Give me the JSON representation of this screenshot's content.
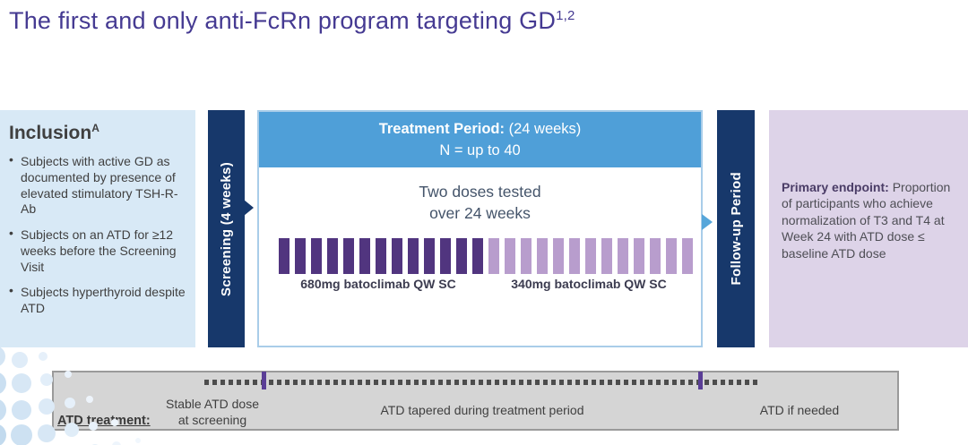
{
  "title": {
    "text": "The first and only anti-FcRn program targeting GD",
    "superscript": "1,2"
  },
  "inclusion": {
    "heading": "Inclusion",
    "heading_superscript": "A",
    "bullets": [
      "Subjects with active GD as documented by presence of elevated stimulatory TSH-R-Ab",
      "Subjects on an ATD for ≥12 weeks before the Screening Visit",
      "Subjects hyperthyroid despite ATD"
    ]
  },
  "screening_bar": {
    "label": "Screening (4 weeks)"
  },
  "treatment": {
    "header_title": "Treatment Period:",
    "header_weeks": "(24 weeks)",
    "header_n": "N = up to 40",
    "subtitle_line1": "Two doses tested",
    "subtitle_line2": "over 24 weeks",
    "dose1_label": "680mg batoclimab QW SC",
    "dose2_label": "340mg batoclimab QW SC",
    "dose1_bar_count": 13,
    "dose2_bar_count": 13
  },
  "followup_bar": {
    "label": "Follow-up Period"
  },
  "primary_endpoint": {
    "heading": "Primary endpoint:",
    "body": "Proportion of participants who achieve normalization of T3 and T4 at Week 24 with ATD dose ≤ baseline ATD dose"
  },
  "atd_timeline": {
    "label": "ATD treatment:",
    "phase1_line1": "Stable ATD dose",
    "phase1_line2": "at screening",
    "phase2": "ATD tapered during treatment period",
    "phase3": "ATD if needed"
  },
  "colors": {
    "title_text": "#453a92",
    "navy_bar": "#17386b",
    "treatment_header_blue": "#4f9fd8",
    "treatment_border_blue": "#a9cde9",
    "dose1": "#51357f",
    "dose2": "#b89dcd",
    "inclusion_bg": "#d8e9f6",
    "endpoint_bg": "#ddd3e8",
    "timeline_tick_purple": "#5a3e96",
    "timeline_bg": "#d5d5d5"
  }
}
